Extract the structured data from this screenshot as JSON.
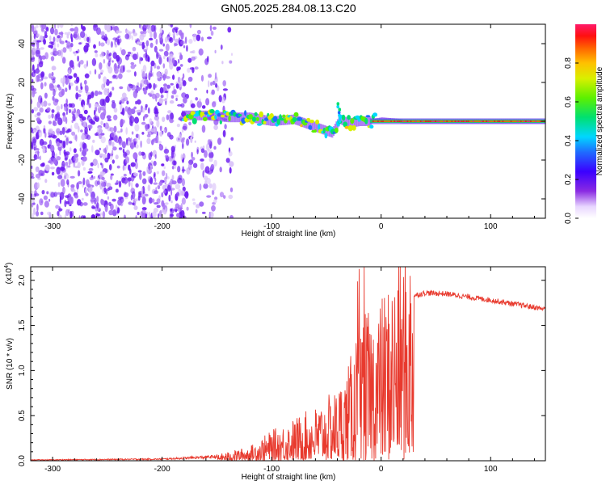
{
  "title": "GN05.2025.284.08.13.C20",
  "chart_data": [
    {
      "type": "heatmap",
      "xlabel": "Height of straight line (km)",
      "ylabel": "Frequency (Hz)",
      "xlim": [
        -320,
        150
      ],
      "ylim": [
        -50,
        50
      ],
      "xticks": [
        -300,
        -200,
        -100,
        0,
        100
      ],
      "yticks": [
        -40,
        -20,
        0,
        20,
        40
      ],
      "colorbar": {
        "label": "Normalized spectral amplitude",
        "range": [
          0.0,
          1.0
        ],
        "ticks": [
          0.0,
          0.2,
          0.4,
          0.6,
          0.8
        ]
      },
      "ridge": {
        "x": [
          -180,
          -160,
          -140,
          -120,
          -100,
          -80,
          -60,
          -45,
          -38,
          -30,
          -20,
          -10,
          0,
          20,
          60,
          100,
          150
        ],
        "y": [
          3,
          3,
          2,
          2,
          0,
          1,
          -3,
          -6,
          1,
          -1,
          0,
          0,
          1,
          0,
          0,
          0,
          0
        ]
      }
    },
    {
      "type": "line",
      "xlabel": "Height of straight line (km)",
      "ylabel": "SNR (10 * v/v)",
      "y_scale_label": "(x10",
      "y_scale_exp": "4",
      "xlim": [
        -320,
        150
      ],
      "ylim": [
        0.0,
        2.15
      ],
      "xticks": [
        -300,
        -200,
        -100,
        0,
        100
      ],
      "yticks": [
        "0.0",
        "0.5",
        "1.0",
        "1.5",
        "2.0"
      ],
      "series": [
        {
          "name": "SNR",
          "color": "#e83a2e",
          "envelope_x": [
            -320,
            -200,
            -150,
            -120,
            -100,
            -80,
            -60,
            -40,
            -30,
            -20,
            -15,
            -10,
            0,
            10,
            20,
            30,
            40,
            60,
            100,
            150
          ],
          "envelope_y": [
            0.01,
            0.02,
            0.05,
            0.12,
            0.25,
            0.35,
            0.45,
            0.6,
            0.8,
            1.1,
            1.2,
            1.25,
            1.35,
            1.55,
            1.75,
            1.83,
            1.86,
            1.85,
            1.78,
            1.68
          ]
        }
      ]
    }
  ]
}
